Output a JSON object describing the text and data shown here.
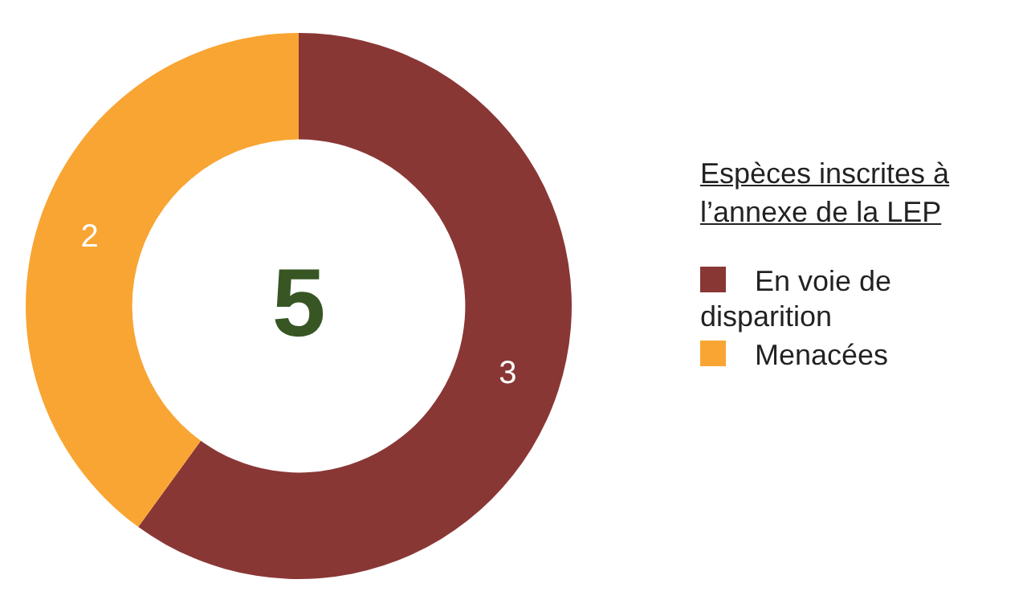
{
  "chart_data": {
    "type": "donut",
    "categories": [
      "En voie de disparition",
      "Menacées"
    ],
    "values": [
      3,
      2
    ],
    "colors": [
      "#893735",
      "#f9a533"
    ],
    "data_labels": true,
    "legend": "right",
    "legend_title": "Espèces inscrites à l’annexe de la LEP",
    "annotations": [
      "5"
    ]
  }
}
